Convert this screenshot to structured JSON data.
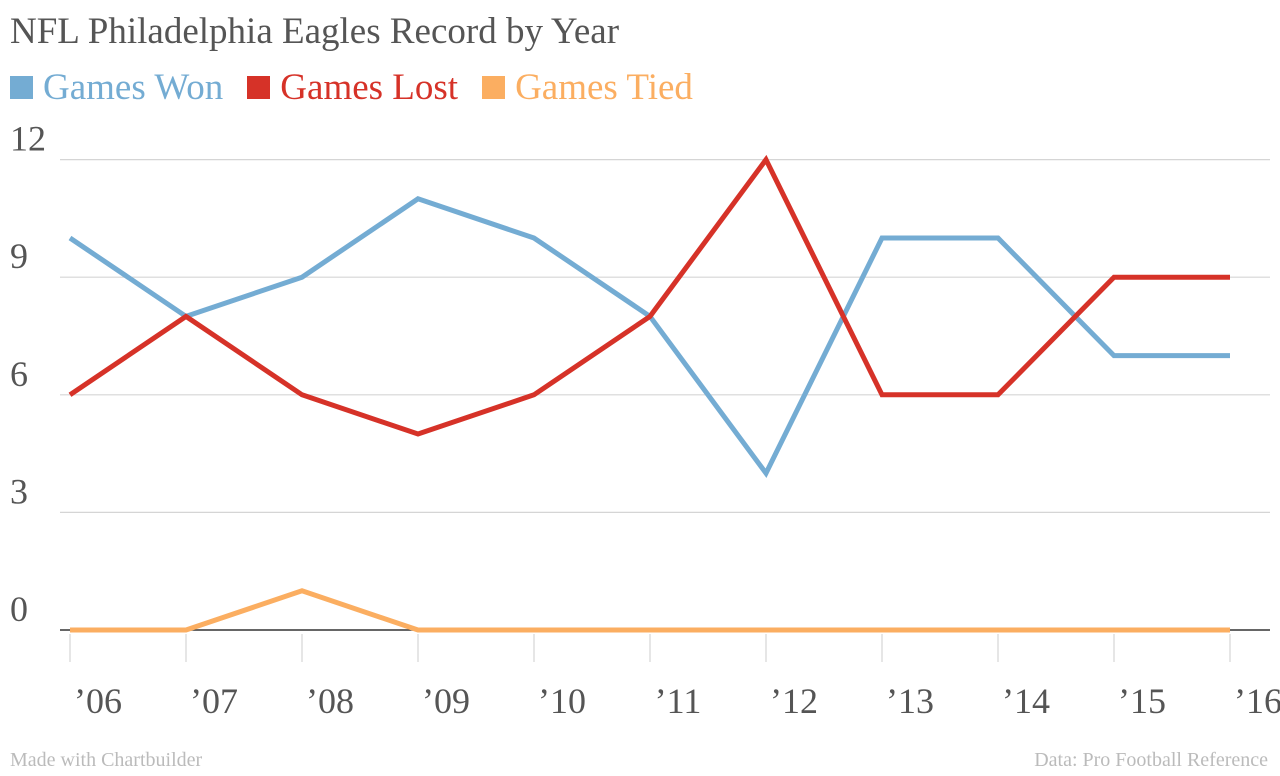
{
  "chart_data": {
    "type": "line",
    "title": "NFL Philadelphia Eagles Record by Year",
    "categories": [
      "’06",
      "’07",
      "’08",
      "’09",
      "’10",
      "’11",
      "’12",
      "’13",
      "’14",
      "’15",
      "’16"
    ],
    "series": [
      {
        "name": "Games Won",
        "color": "#74acd3",
        "values": [
          10,
          8,
          9,
          11,
          10,
          8,
          4,
          10,
          10,
          7,
          7
        ]
      },
      {
        "name": "Games Lost",
        "color": "#d63228",
        "values": [
          6,
          8,
          6,
          5,
          6,
          8,
          12,
          6,
          6,
          9,
          9
        ]
      },
      {
        "name": "Games Tied",
        "color": "#fbae61",
        "values": [
          0,
          0,
          1,
          0,
          0,
          0,
          0,
          0,
          0,
          0,
          0
        ]
      }
    ],
    "yticks": [
      0,
      3,
      6,
      9,
      12
    ],
    "ylim": [
      0,
      12
    ],
    "grid": true,
    "legend_position": "top-left"
  },
  "footer": {
    "left": "Made with Chartbuilder",
    "right": "Data: Pro Football Reference"
  }
}
